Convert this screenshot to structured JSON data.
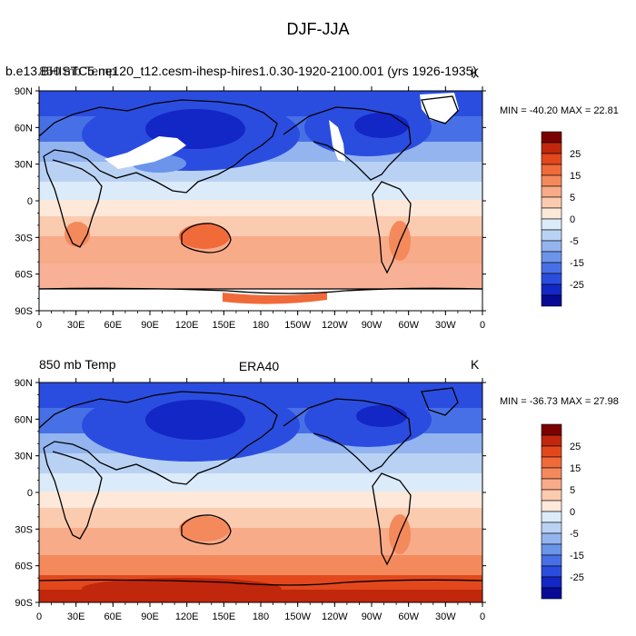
{
  "figure": {
    "title": "DJF-JJA"
  },
  "panels": [
    {
      "id": "top",
      "left_string": "850 mb Temp",
      "left_string_overlap": "b.e13.BHISTC5.ne120_t12.cesm-ihesp-hires1.0.30-1920-2100.001 (yrs 1926-1935)",
      "center_string": "",
      "right_string": "K",
      "stats": "MIN = -40.20 MAX =  22.81",
      "has_missing_white": true
    },
    {
      "id": "bottom",
      "left_string": "850 mb Temp",
      "center_string": "ERA40",
      "right_string": "K",
      "stats": "MIN = -36.73 MAX =  27.98",
      "has_missing_white": false
    }
  ],
  "axes": {
    "lat_labels": [
      "90N",
      "60N",
      "30N",
      "0",
      "30S",
      "60S",
      "90S"
    ],
    "lon_labels": [
      "0",
      "30E",
      "60E",
      "90E",
      "120E",
      "150E",
      "180",
      "150W",
      "120W",
      "90W",
      "60W",
      "30W",
      "0"
    ]
  },
  "colorbar": {
    "labels": [
      "25",
      "15",
      "5",
      "-5",
      "-15",
      "-25"
    ],
    "label_zero": "0",
    "colors": [
      "#7b0000",
      "#c1270c",
      "#e3481d",
      "#f06a3a",
      "#f4895c",
      "#f8ab88",
      "#fbcbb0",
      "#fde8da",
      "#dcebf9",
      "#b9d2f4",
      "#93b4ef",
      "#6b94ea",
      "#4870e6",
      "#2a4de0",
      "#1327c6",
      "#080a96"
    ]
  }
}
